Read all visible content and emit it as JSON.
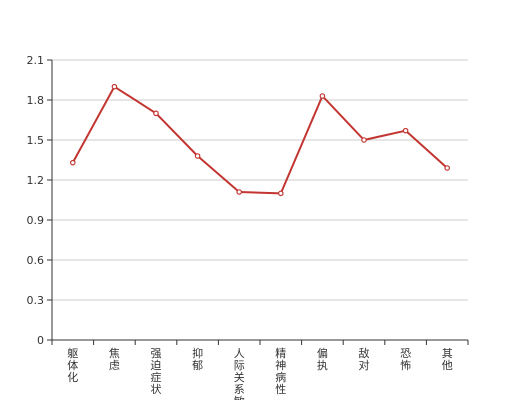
{
  "chart_data": {
    "type": "line",
    "categories": [
      "躯体化",
      "焦虑",
      "强迫症状",
      "抑郁",
      "人际关系敏感",
      "精神病性",
      "偏执",
      "敌对",
      "恐怖",
      "其他"
    ],
    "series": [
      {
        "values": [
          1.33,
          1.9,
          1.7,
          1.38,
          1.11,
          1.1,
          1.83,
          1.5,
          1.57,
          1.29
        ]
      }
    ],
    "ylim": [
      0,
      2.1
    ],
    "yticks": [
      "0",
      "0.3",
      "0.6",
      "0.9",
      "1.2",
      "1.5",
      "1.8",
      "2.1"
    ],
    "grid": true,
    "colors": {
      "line": "#c23531",
      "grid": "#cccccc",
      "axis": "#333333"
    }
  }
}
